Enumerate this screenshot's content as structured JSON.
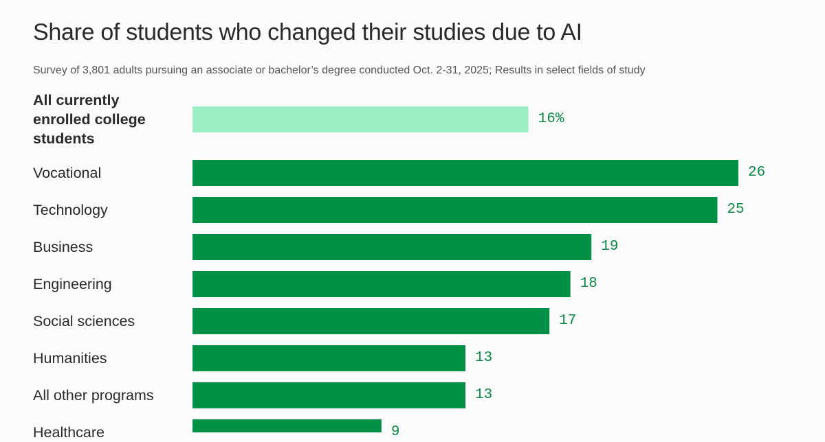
{
  "chart_data": {
    "type": "bar",
    "orientation": "horizontal",
    "title": "Share of students who changed their studies due to AI",
    "subtitle": "Survey of 3,801 adults pursuing an associate or bachelor’s degree conducted Oct. 2-31, 2025; Results in select fields of study",
    "categories": [
      "All currently enrolled college students",
      "Vocational",
      "Technology",
      "Business",
      "Engineering",
      "Social sciences",
      "Humanities",
      "All other programs",
      "Healthcare"
    ],
    "values": [
      16,
      26,
      25,
      19,
      18,
      17,
      13,
      13,
      9
    ],
    "value_labels": [
      "16%",
      "26",
      "25",
      "19",
      "18",
      "17",
      "13",
      "13",
      "9"
    ],
    "unit": "%",
    "highlight_index": 0,
    "colors": {
      "highlight": "#9deec4",
      "bar": "#009146",
      "value_text": "#0a8a45"
    },
    "xlim": [
      0,
      26
    ],
    "grid": false,
    "legend": "none"
  }
}
